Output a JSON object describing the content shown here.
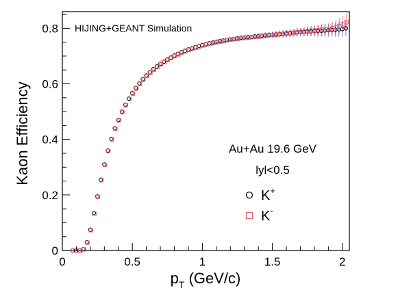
{
  "chart_data": {
    "type": "scatter",
    "title": "",
    "xlabel_main": "p",
    "xlabel_sub": "T",
    "xlabel_rest": " (GeV/c)",
    "ylabel": "Kaon Efficiency",
    "xlim": [
      0,
      2.05
    ],
    "ylim": [
      0,
      0.86
    ],
    "xticks": [
      "0",
      "0.5",
      "1",
      "1.5",
      "2"
    ],
    "yticks": [
      "0",
      "0.2",
      "0.4",
      "0.6",
      "0.8"
    ],
    "annotations": {
      "simulation": "HIJING+GEANT Simulation",
      "system": "Au+Au 19.6 GeV",
      "cut": "lyl<0.5"
    },
    "legend": {
      "position": "right",
      "entries": [
        {
          "base": "K",
          "sup": "+",
          "marker": "circle",
          "color": "#000000"
        },
        {
          "base": "K",
          "sup": "-",
          "marker": "square",
          "color": "#e0606a"
        }
      ]
    },
    "colors": {
      "kplus": "#000000",
      "kminus": "#e0606a",
      "error_kplus": "#7777dd",
      "error_kminus": "#e58a9a"
    },
    "series": [
      {
        "name": "K+",
        "x": [
          0.075,
          0.1,
          0.125,
          0.15,
          0.175,
          0.2,
          0.225,
          0.25,
          0.275,
          0.3,
          0.325,
          0.35,
          0.375,
          0.4,
          0.425,
          0.45,
          0.475,
          0.5,
          0.525,
          0.55,
          0.575,
          0.6,
          0.625,
          0.65,
          0.675,
          0.7,
          0.725,
          0.75,
          0.775,
          0.8,
          0.825,
          0.85,
          0.875,
          0.9,
          0.925,
          0.95,
          0.975,
          1.0,
          1.025,
          1.05,
          1.075,
          1.1,
          1.125,
          1.15,
          1.175,
          1.2,
          1.225,
          1.25,
          1.275,
          1.3,
          1.325,
          1.35,
          1.375,
          1.4,
          1.425,
          1.45,
          1.475,
          1.5,
          1.525,
          1.55,
          1.575,
          1.6,
          1.625,
          1.65,
          1.675,
          1.7,
          1.725,
          1.75,
          1.775,
          1.8,
          1.825,
          1.85,
          1.875,
          1.9,
          1.925,
          1.95,
          1.975,
          2.0,
          2.025
        ],
        "y": [
          0.0,
          0.0,
          0.0,
          0.005,
          0.03,
          0.075,
          0.135,
          0.195,
          0.255,
          0.31,
          0.36,
          0.402,
          0.44,
          0.47,
          0.5,
          0.525,
          0.547,
          0.567,
          0.585,
          0.602,
          0.617,
          0.63,
          0.642,
          0.653,
          0.663,
          0.672,
          0.68,
          0.688,
          0.695,
          0.702,
          0.708,
          0.714,
          0.719,
          0.724,
          0.728,
          0.732,
          0.736,
          0.74,
          0.743,
          0.746,
          0.749,
          0.752,
          0.754,
          0.756,
          0.758,
          0.76,
          0.762,
          0.764,
          0.766,
          0.767,
          0.768,
          0.769,
          0.771,
          0.772,
          0.773,
          0.775,
          0.776,
          0.777,
          0.778,
          0.779,
          0.78,
          0.781,
          0.782,
          0.784,
          0.785,
          0.786,
          0.787,
          0.788,
          0.789,
          0.79,
          0.79,
          0.791,
          0.792,
          0.793,
          0.794,
          0.795,
          0.796,
          0.797,
          0.8
        ],
        "err": [
          0.0,
          0.0,
          0.0,
          0.002,
          0.002,
          0.002,
          0.002,
          0.002,
          0.002,
          0.002,
          0.002,
          0.002,
          0.002,
          0.002,
          0.002,
          0.002,
          0.002,
          0.002,
          0.002,
          0.002,
          0.002,
          0.002,
          0.002,
          0.002,
          0.002,
          0.002,
          0.002,
          0.003,
          0.003,
          0.003,
          0.003,
          0.003,
          0.003,
          0.003,
          0.003,
          0.004,
          0.004,
          0.004,
          0.004,
          0.004,
          0.005,
          0.005,
          0.005,
          0.005,
          0.006,
          0.006,
          0.006,
          0.007,
          0.007,
          0.007,
          0.008,
          0.008,
          0.009,
          0.009,
          0.01,
          0.01,
          0.011,
          0.011,
          0.012,
          0.012,
          0.013,
          0.013,
          0.014,
          0.014,
          0.015,
          0.015,
          0.016,
          0.017,
          0.018,
          0.019,
          0.02,
          0.021,
          0.022,
          0.023,
          0.024,
          0.025,
          0.026,
          0.027,
          0.028
        ]
      },
      {
        "name": "K-",
        "x": [
          0.075,
          0.1,
          0.125,
          0.15,
          0.175,
          0.2,
          0.225,
          0.25,
          0.275,
          0.3,
          0.325,
          0.35,
          0.375,
          0.4,
          0.425,
          0.45,
          0.475,
          0.5,
          0.525,
          0.55,
          0.575,
          0.6,
          0.625,
          0.65,
          0.675,
          0.7,
          0.725,
          0.75,
          0.775,
          0.8,
          0.825,
          0.85,
          0.875,
          0.9,
          0.925,
          0.95,
          0.975,
          1.0,
          1.025,
          1.05,
          1.075,
          1.1,
          1.125,
          1.15,
          1.175,
          1.2,
          1.225,
          1.25,
          1.275,
          1.3,
          1.325,
          1.35,
          1.375,
          1.4,
          1.425,
          1.45,
          1.475,
          1.5,
          1.525,
          1.55,
          1.575,
          1.6,
          1.625,
          1.65,
          1.675,
          1.7,
          1.725,
          1.75,
          1.775,
          1.8,
          1.825,
          1.85,
          1.875,
          1.9,
          1.925,
          1.95,
          1.975,
          2.0,
          2.025
        ],
        "y": [
          0.0,
          0.0,
          0.0,
          0.004,
          0.028,
          0.073,
          0.133,
          0.193,
          0.253,
          0.308,
          0.358,
          0.4,
          0.438,
          0.468,
          0.498,
          0.523,
          0.545,
          0.565,
          0.583,
          0.6,
          0.615,
          0.628,
          0.64,
          0.651,
          0.661,
          0.67,
          0.678,
          0.686,
          0.693,
          0.7,
          0.706,
          0.712,
          0.717,
          0.722,
          0.726,
          0.73,
          0.734,
          0.738,
          0.741,
          0.744,
          0.747,
          0.75,
          0.752,
          0.754,
          0.757,
          0.759,
          0.761,
          0.762,
          0.764,
          0.765,
          0.766,
          0.768,
          0.769,
          0.77,
          0.772,
          0.773,
          0.775,
          0.776,
          0.777,
          0.779,
          0.78,
          0.782,
          0.783,
          0.784,
          0.786,
          0.787,
          0.788,
          0.79,
          0.791,
          0.792,
          0.793,
          0.795,
          0.796,
          0.798,
          0.8,
          0.803,
          0.808,
          0.815,
          0.822
        ],
        "err": [
          0.0,
          0.0,
          0.0,
          0.002,
          0.002,
          0.002,
          0.002,
          0.002,
          0.002,
          0.002,
          0.002,
          0.002,
          0.002,
          0.002,
          0.002,
          0.002,
          0.002,
          0.002,
          0.002,
          0.002,
          0.002,
          0.002,
          0.002,
          0.002,
          0.002,
          0.002,
          0.002,
          0.003,
          0.003,
          0.003,
          0.003,
          0.003,
          0.003,
          0.003,
          0.003,
          0.004,
          0.004,
          0.004,
          0.004,
          0.004,
          0.005,
          0.005,
          0.005,
          0.005,
          0.006,
          0.006,
          0.006,
          0.007,
          0.007,
          0.007,
          0.008,
          0.008,
          0.009,
          0.009,
          0.01,
          0.01,
          0.011,
          0.011,
          0.012,
          0.012,
          0.013,
          0.013,
          0.014,
          0.014,
          0.015,
          0.015,
          0.016,
          0.017,
          0.018,
          0.019,
          0.02,
          0.021,
          0.022,
          0.023,
          0.024,
          0.026,
          0.028,
          0.03,
          0.032
        ]
      }
    ]
  }
}
